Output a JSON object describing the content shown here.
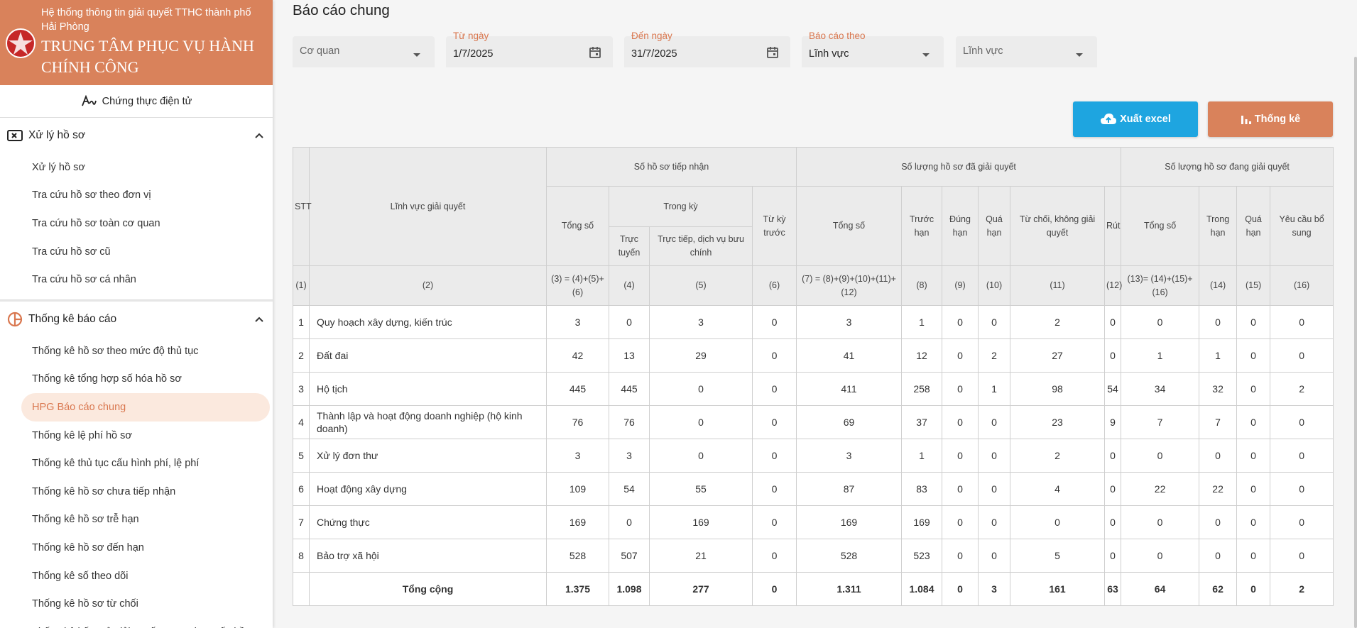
{
  "sidebar": {
    "system_name": "Hệ thống thông tin giải quyết TTHC thành phố Hải Phòng",
    "center_name": "TRUNG TÂM PHỤC VỤ HÀNH CHÍNH CÔNG",
    "top_link": "Chứng thực điện tử",
    "sections": [
      {
        "title": "Xử lý hồ sơ",
        "items": [
          "Xử lý hồ sơ",
          "Tra cứu hồ sơ theo đơn vị",
          "Tra cứu hồ sơ toàn cơ quan",
          "Tra cứu hồ sơ cũ",
          "Tra cứu hồ sơ cá nhân"
        ]
      },
      {
        "title": "Thống kê báo cáo",
        "items": [
          "Thống kê hồ sơ theo mức độ thủ tục",
          "Thống kê tổng hợp số hóa hồ sơ",
          "HPG Báo cáo chung",
          "Thống kê lệ phí hồ sơ",
          "Thống kê thủ tục cấu hình phí, lệ phí",
          "Thống kê hồ sơ chưa tiếp nhận",
          "Thống kê hồ sơ trễ hạn",
          "Thống kê hồ sơ đến hạn",
          "Thống kê số theo dõi",
          "Thống kê hồ sơ từ chối",
          "Thống kê kết quả giải quyết TTHC theo cấp hồ"
        ]
      }
    ],
    "active_item": "HPG Báo cáo chung"
  },
  "main": {
    "title": "Báo cáo chung",
    "filters": [
      {
        "placeholder": "Cơ quan"
      },
      {
        "label": "Từ ngày",
        "value": "1/7/2025"
      },
      {
        "label": "Đến ngày",
        "value": "31/7/2025"
      },
      {
        "label": "Báo cáo theo",
        "value": "Lĩnh vực"
      },
      {
        "placeholder": "Lĩnh vực"
      }
    ],
    "buttons": [
      "Xuất excel",
      "Thống kê"
    ]
  },
  "table": {
    "headers": {
      "stt": "STT",
      "field": "Lĩnh vực giải quyết",
      "received": "Số hồ sơ tiếp nhận",
      "resolved": "Số lượng hồ sơ đã giải quyết",
      "pending": "Số lượng hồ sơ đang giải quyết"
    },
    "received_cols": [
      "Tổng số",
      "Trong kỳ",
      "Từ kỳ trước"
    ],
    "in_period_cols": [
      "Trực tuyến",
      "Trực tiếp, dịch vụ bưu chính"
    ],
    "resolved_cols": [
      "Tổng số",
      "Trước hạn",
      "Đúng hạn",
      "Quá hạn",
      "Từ chối, không giải quyết",
      "Rút"
    ],
    "pending_cols": [
      "Tổng số",
      "Trong hạn",
      "Quá hạn",
      "Yêu cầu bổ sung"
    ],
    "col_numbers": [
      "(1)",
      "(2)",
      "(3) = (4)+(5)+(6)",
      "(4)",
      "(5)",
      "(6)",
      "(7) = (8)+(9)+(10)+(11)+(12)",
      "(8)",
      "(9)",
      "(10)",
      "(11)",
      "(12)",
      "(13)= (14)+(15)+(16)",
      "(14)",
      "(15)",
      "(16)"
    ],
    "rows": [
      [
        1,
        "Quy hoạch xây dựng, kiến trúc",
        3,
        0,
        3,
        0,
        3,
        1,
        0,
        0,
        2,
        0,
        0,
        0,
        0,
        0
      ],
      [
        2,
        "Đất đai",
        42,
        13,
        29,
        0,
        41,
        12,
        0,
        2,
        27,
        0,
        1,
        1,
        0,
        0
      ],
      [
        3,
        "Hộ tịch",
        445,
        445,
        0,
        0,
        411,
        258,
        0,
        1,
        98,
        54,
        34,
        32,
        0,
        2
      ],
      [
        4,
        "Thành lập và hoạt động doanh nghiệp (hộ kinh doanh)",
        76,
        76,
        0,
        0,
        69,
        37,
        0,
        0,
        23,
        9,
        7,
        7,
        0,
        0
      ],
      [
        5,
        "Xử lý đơn thư",
        3,
        3,
        0,
        0,
        3,
        1,
        0,
        0,
        2,
        0,
        0,
        0,
        0,
        0
      ],
      [
        6,
        "Hoạt động xây dựng",
        109,
        54,
        55,
        0,
        87,
        83,
        0,
        0,
        4,
        0,
        22,
        22,
        0,
        0
      ],
      [
        7,
        "Chứng thực",
        169,
        0,
        169,
        0,
        169,
        169,
        0,
        0,
        0,
        0,
        0,
        0,
        0,
        0
      ],
      [
        8,
        "Bảo trợ xã hội",
        528,
        507,
        21,
        0,
        528,
        523,
        0,
        0,
        5,
        0,
        0,
        0,
        0,
        0
      ]
    ],
    "total": {
      "label": "Tổng cộng",
      "values": [
        "1.375",
        "1.098",
        "277",
        "0",
        "1.311",
        "1.084",
        "0",
        "3",
        "161",
        "63",
        "64",
        "62",
        "0",
        "2"
      ]
    }
  }
}
